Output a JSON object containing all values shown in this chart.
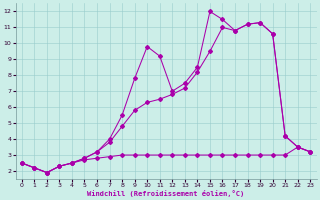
{
  "xlabel": "Windchill (Refroidissement éolien,°C)",
  "background_color": "#cceee8",
  "line_color": "#aa00aa",
  "grid_color": "#99cccc",
  "x_ticks": [
    0,
    1,
    2,
    3,
    4,
    5,
    6,
    7,
    8,
    9,
    10,
    11,
    12,
    13,
    14,
    15,
    16,
    17,
    18,
    19,
    20,
    21,
    22,
    23
  ],
  "y_ticks": [
    2,
    3,
    4,
    5,
    6,
    7,
    8,
    9,
    10,
    11,
    12
  ],
  "ylim": [
    1.5,
    12.5
  ],
  "xlim": [
    -0.5,
    23.5
  ],
  "line_flat_x": [
    0,
    1,
    2,
    3,
    4,
    5,
    6,
    7,
    8,
    9,
    10,
    11,
    12,
    13,
    14,
    15,
    16,
    17,
    18,
    19,
    20,
    21,
    22,
    23
  ],
  "line_flat_y": [
    2.5,
    2.2,
    1.9,
    2.3,
    2.5,
    2.7,
    2.8,
    2.9,
    3.0,
    3.0,
    3.0,
    3.0,
    3.0,
    3.0,
    3.0,
    3.0,
    3.0,
    3.0,
    3.0,
    3.0,
    3.0,
    3.0,
    3.5,
    3.2
  ],
  "line_zigzag_x": [
    0,
    1,
    2,
    3,
    4,
    5,
    6,
    7,
    8,
    9,
    10,
    11,
    12,
    13,
    14,
    15,
    16,
    17,
    18,
    19,
    20,
    21,
    22,
    23
  ],
  "line_zigzag_y": [
    2.5,
    2.2,
    1.9,
    2.3,
    2.5,
    2.8,
    3.2,
    4.0,
    5.5,
    7.8,
    9.8,
    9.2,
    7.0,
    7.5,
    8.5,
    12.0,
    11.5,
    10.8,
    11.2,
    11.3,
    10.6,
    4.2,
    3.5,
    3.2
  ],
  "line_smooth_x": [
    0,
    1,
    2,
    3,
    4,
    5,
    6,
    7,
    8,
    9,
    10,
    11,
    12,
    13,
    14,
    15,
    16,
    17,
    18,
    19,
    20,
    21,
    22,
    23
  ],
  "line_smooth_y": [
    2.5,
    2.2,
    1.9,
    2.3,
    2.5,
    2.8,
    3.2,
    3.8,
    4.8,
    5.8,
    6.3,
    6.5,
    6.8,
    7.2,
    8.2,
    9.5,
    11.0,
    10.8,
    11.2,
    11.3,
    10.6,
    4.2,
    3.5,
    3.2
  ]
}
